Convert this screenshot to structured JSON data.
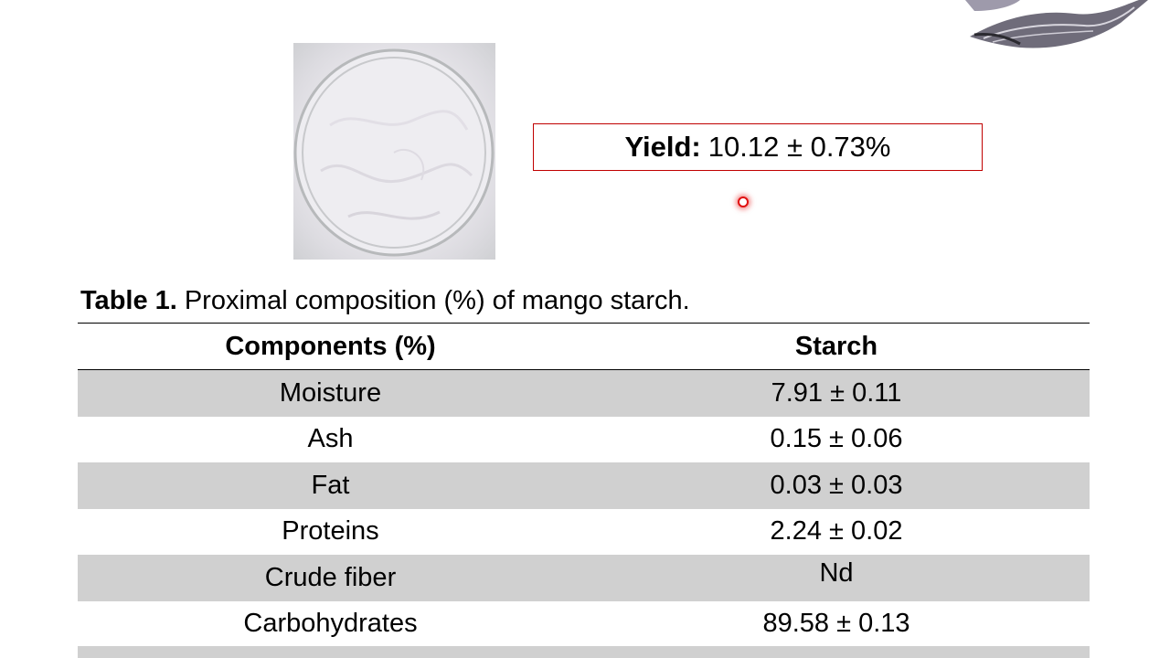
{
  "yield": {
    "label": "Yield:",
    "value": "10.12 ± 0.73%"
  },
  "table": {
    "caption_label": "Table 1.",
    "caption_text": "Proximal composition (%) of mango starch.",
    "headers": [
      "Components (%)",
      "Starch"
    ],
    "rows": [
      [
        "Moisture",
        "7.91 ± 0.11"
      ],
      [
        "Ash",
        "0.15 ± 0.06"
      ],
      [
        "Fat",
        "0.03 ± 0.03"
      ],
      [
        "Proteins",
        "2.24 ± 0.02"
      ],
      [
        "Crude fiber",
        "Nd"
      ],
      [
        "Carbohydrates",
        "89.58 ± 0.13"
      ]
    ]
  },
  "colors": {
    "accent_border": "#c00000",
    "row_shade": "#d0d0d0",
    "pointer": "#e01010"
  }
}
